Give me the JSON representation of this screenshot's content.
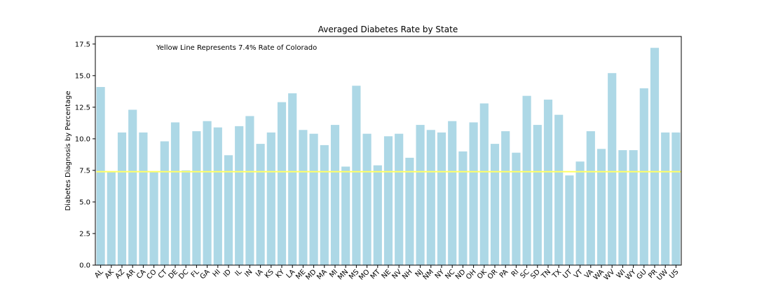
{
  "chart_data": {
    "type": "bar",
    "title": "Averaged Diabetes Rate by State",
    "xlabel": "",
    "ylabel": "Diabetes Diagnosis by Percentage",
    "ylim": [
      0,
      18.1
    ],
    "yticks": [
      0.0,
      2.5,
      5.0,
      7.5,
      10.0,
      12.5,
      15.0,
      17.5
    ],
    "ytick_labels": [
      "0.0",
      "2.5",
      "5.0",
      "7.5",
      "10.0",
      "12.5",
      "15.0",
      "17.5"
    ],
    "bar_color": "#add8e6",
    "reference_line": {
      "value": 7.4,
      "color": "#ffff66"
    },
    "annotation": "Yellow Line Represents 7.4% Rate of Colorado",
    "grid": false,
    "categories": [
      "AL",
      "AK",
      "AZ",
      "AR",
      "CA",
      "CO",
      "CT",
      "DE",
      "DC",
      "FL",
      "GA",
      "HI",
      "ID",
      "IL",
      "IN",
      "IA",
      "KS",
      "KY",
      "LA",
      "ME",
      "MD",
      "MA",
      "MI",
      "MN",
      "MS",
      "MO",
      "MT",
      "NE",
      "NV",
      "NH",
      "NJ",
      "NM",
      "NY",
      "NC",
      "ND",
      "OH",
      "OK",
      "OR",
      "PA",
      "RI",
      "SC",
      "SD",
      "TN",
      "TX",
      "UT",
      "VT",
      "VA",
      "WA",
      "WV",
      "WI",
      "WY",
      "GU",
      "PR",
      "UW",
      "US"
    ],
    "values": [
      14.1,
      7.4,
      10.5,
      12.3,
      10.5,
      7.4,
      9.8,
      11.3,
      7.5,
      10.6,
      11.4,
      10.9,
      8.7,
      11.0,
      11.8,
      9.6,
      10.5,
      12.9,
      13.6,
      10.7,
      10.4,
      9.5,
      11.1,
      7.8,
      14.2,
      10.4,
      7.9,
      10.2,
      10.4,
      8.5,
      11.1,
      10.7,
      10.5,
      11.4,
      9.0,
      11.3,
      12.8,
      9.6,
      10.6,
      8.9,
      13.4,
      11.1,
      13.1,
      11.9,
      7.1,
      8.2,
      10.6,
      9.2,
      15.2,
      9.1,
      9.1,
      14.0,
      17.2,
      10.5,
      10.5
    ]
  }
}
